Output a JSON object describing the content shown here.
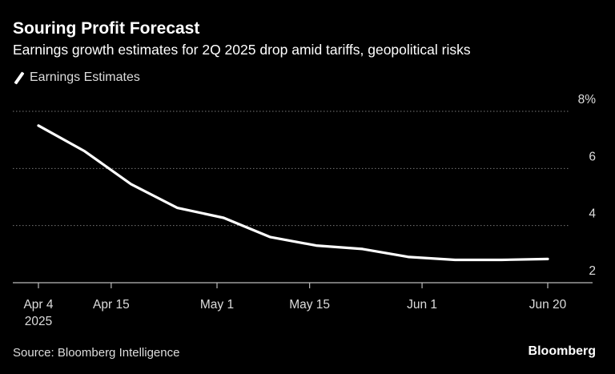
{
  "chart_data": {
    "type": "line",
    "title": "Souring Profit Forecast",
    "subtitle": "Earnings growth estimates for 2Q 2025 drop amid tariffs, geopolitical risks",
    "series": [
      {
        "name": "Earnings Estimates",
        "color": "#ffffff",
        "x": [
          "2025-04-04",
          "2025-04-11",
          "2025-04-18",
          "2025-04-25",
          "2025-05-02",
          "2025-05-09",
          "2025-05-16",
          "2025-05-23",
          "2025-05-30",
          "2025-06-06",
          "2025-06-13",
          "2025-06-20"
        ],
        "values": [
          7.5,
          6.6,
          5.45,
          4.62,
          4.27,
          3.6,
          3.3,
          3.18,
          2.9,
          2.8,
          2.8,
          2.83
        ]
      }
    ],
    "x_ticks": [
      {
        "date": "2025-04-04",
        "label": "Apr 4",
        "sublabel": "2025"
      },
      {
        "date": "2025-04-15",
        "label": "Apr 15"
      },
      {
        "date": "2025-05-01",
        "label": "May 1"
      },
      {
        "date": "2025-05-15",
        "label": "May 15"
      },
      {
        "date": "2025-06-01",
        "label": "Jun 1"
      },
      {
        "date": "2025-06-20",
        "label": "Jun 20"
      }
    ],
    "y_ticks": [
      {
        "value": 8,
        "label": "8%"
      },
      {
        "value": 6,
        "label": "6"
      },
      {
        "value": 4,
        "label": "4"
      },
      {
        "value": 2,
        "label": "2"
      }
    ],
    "ylim": [
      2,
      8
    ],
    "xlim": [
      "2025-04-04",
      "2025-06-20"
    ],
    "grid": "horizontal dotted",
    "legend_position": "top-left",
    "xlabel": "",
    "ylabel": ""
  },
  "footer": {
    "source": "Source: Bloomberg Intelligence",
    "logo": "Bloomberg"
  }
}
